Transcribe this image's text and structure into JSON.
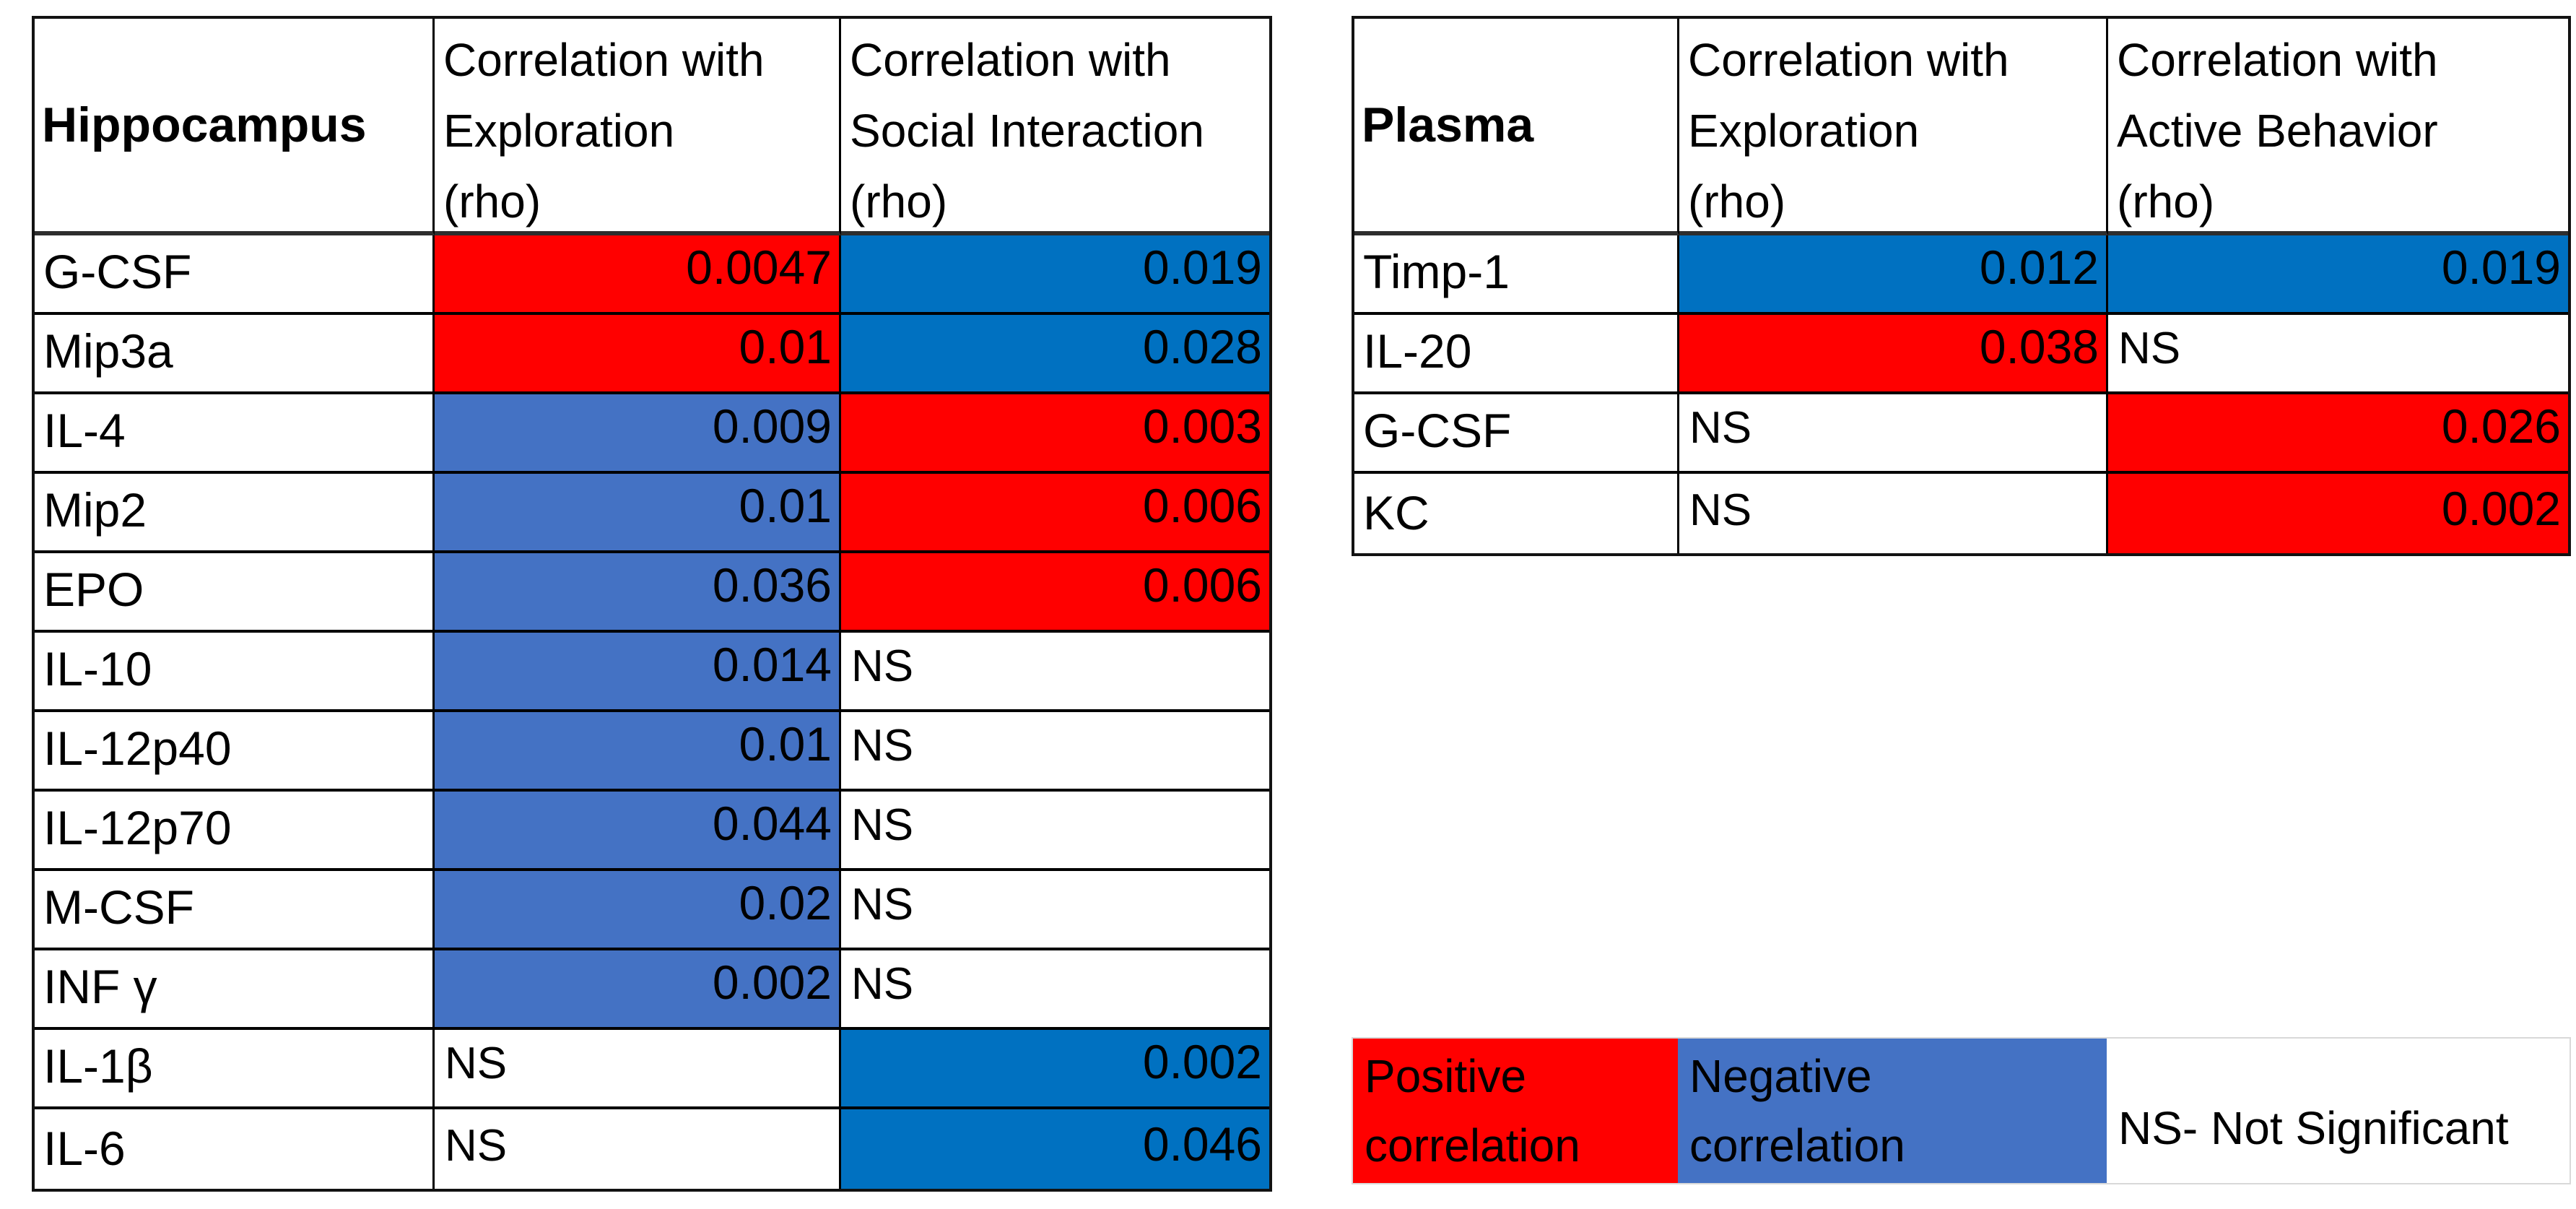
{
  "colors": {
    "positive": "#FF0000",
    "negative": "#4472C4",
    "negative_strong": "#0071C1",
    "grid_border": "#000000",
    "legend_border": "#D9D9D9"
  },
  "tables": [
    {
      "title": "Hippocampus",
      "columns": [
        {
          "lines": [
            "Correlation with",
            "Exploration",
            "(rho)"
          ]
        },
        {
          "lines": [
            "Correlation with",
            "Social Interaction",
            "(rho)"
          ]
        }
      ],
      "rows": [
        {
          "label": "G-CSF",
          "cells": [
            {
              "text": "0.0047",
              "fill": "positive"
            },
            {
              "text": "0.019",
              "fill": "negative_strong"
            }
          ]
        },
        {
          "label": "Mip3a",
          "cells": [
            {
              "text": "0.01",
              "fill": "positive"
            },
            {
              "text": "0.028",
              "fill": "negative_strong"
            }
          ]
        },
        {
          "label": "IL-4",
          "cells": [
            {
              "text": "0.009",
              "fill": "negative"
            },
            {
              "text": "0.003",
              "fill": "positive"
            }
          ]
        },
        {
          "label": "Mip2",
          "cells": [
            {
              "text": "0.01",
              "fill": "negative"
            },
            {
              "text": "0.006",
              "fill": "positive"
            }
          ]
        },
        {
          "label": "EPO",
          "cells": [
            {
              "text": "0.036",
              "fill": "negative"
            },
            {
              "text": "0.006",
              "fill": "positive"
            }
          ]
        },
        {
          "label": "IL-10",
          "cells": [
            {
              "text": "0.014",
              "fill": "negative"
            },
            {
              "text": "NS",
              "fill": "none"
            }
          ]
        },
        {
          "label": "IL-12p40",
          "cells": [
            {
              "text": "0.01",
              "fill": "negative"
            },
            {
              "text": "NS",
              "fill": "none"
            }
          ]
        },
        {
          "label": "IL-12p70",
          "cells": [
            {
              "text": "0.044",
              "fill": "negative"
            },
            {
              "text": "NS",
              "fill": "none"
            }
          ]
        },
        {
          "label": "M-CSF",
          "cells": [
            {
              "text": "0.02",
              "fill": "negative"
            },
            {
              "text": "NS",
              "fill": "none"
            }
          ]
        },
        {
          "label": "INF γ",
          "cells": [
            {
              "text": "0.002",
              "fill": "negative"
            },
            {
              "text": "NS",
              "fill": "none"
            }
          ]
        },
        {
          "label": "IL-1β",
          "cells": [
            {
              "text": "NS",
              "fill": "none"
            },
            {
              "text": "0.002",
              "fill": "negative_strong"
            }
          ]
        },
        {
          "label": "IL-6",
          "cells": [
            {
              "text": "NS",
              "fill": "none"
            },
            {
              "text": "0.046",
              "fill": "negative_strong"
            }
          ]
        }
      ]
    },
    {
      "title": "Plasma",
      "columns": [
        {
          "lines": [
            "Correlation with",
            "Exploration",
            "(rho)"
          ]
        },
        {
          "lines": [
            "Correlation with",
            "Active Behavior",
            "(rho)"
          ]
        }
      ],
      "rows": [
        {
          "label": "Timp-1",
          "cells": [
            {
              "text": "0.012",
              "fill": "negative_strong"
            },
            {
              "text": "0.019",
              "fill": "negative_strong"
            }
          ]
        },
        {
          "label": "IL-20",
          "cells": [
            {
              "text": "0.038",
              "fill": "positive"
            },
            {
              "text": "NS",
              "fill": "none"
            }
          ]
        },
        {
          "label": "G-CSF",
          "cells": [
            {
              "text": "NS",
              "fill": "none"
            },
            {
              "text": "0.026",
              "fill": "positive"
            }
          ]
        },
        {
          "label": "KC",
          "cells": [
            {
              "text": "NS",
              "fill": "none"
            },
            {
              "text": "0.002",
              "fill": "positive"
            }
          ]
        }
      ]
    }
  ],
  "legend": {
    "cells": [
      {
        "lines": [
          "Positive",
          "correlation"
        ],
        "fill": "positive"
      },
      {
        "lines": [
          "Negative",
          "correlation"
        ],
        "fill": "negative"
      },
      {
        "lines": [
          "NS- Not Significant"
        ],
        "fill": "none"
      }
    ]
  }
}
